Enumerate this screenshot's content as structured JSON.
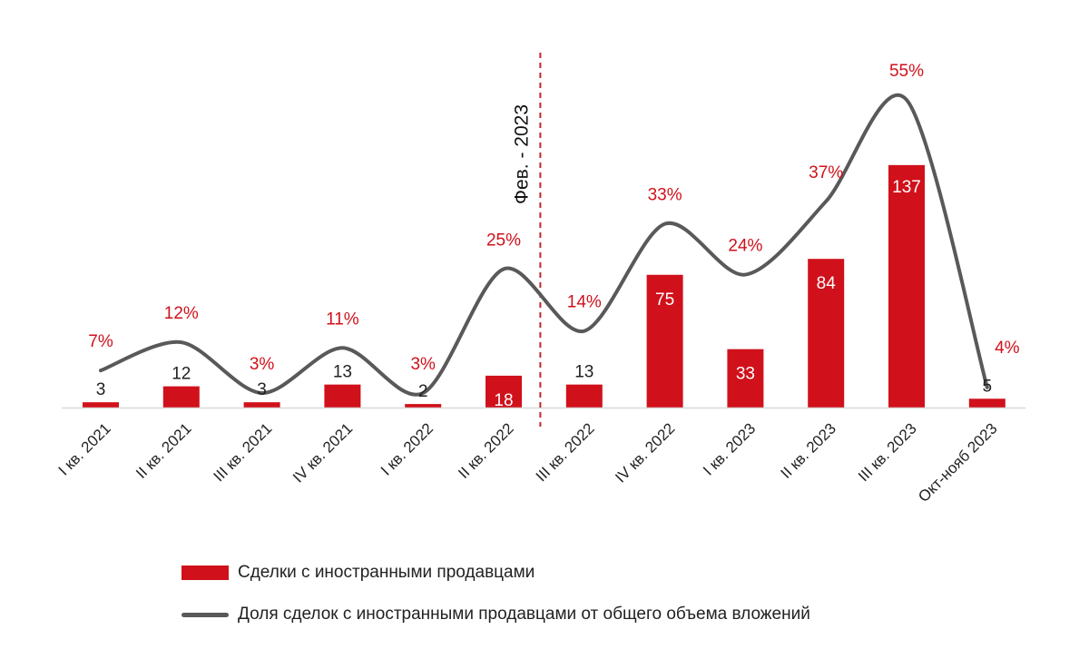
{
  "chart_data": {
    "type": "bar",
    "categories": [
      "I кв. 2021",
      "II кв. 2021",
      "III кв. 2021",
      "IV кв. 2021",
      "I кв. 2022",
      "II кв. 2022",
      "III кв. 2022",
      "IV кв. 2022",
      "I кв. 2023",
      "II кв. 2023",
      "III кв. 2023",
      "Окт-нояб 2023"
    ],
    "series": [
      {
        "name": "Сделки с иностранными продавцами",
        "type": "bar",
        "values": [
          3,
          12,
          3,
          13,
          2,
          18,
          13,
          75,
          33,
          84,
          137,
          5
        ],
        "labels": [
          "3",
          "12",
          "3",
          "13",
          "2",
          "18",
          "13",
          "75",
          "33",
          "84",
          "137",
          "5"
        ],
        "color": "#d0111b"
      },
      {
        "name": "Доля сделок с иностранными продавцами от общего объема вложений",
        "type": "line",
        "values": [
          7,
          12,
          3,
          11,
          3,
          25,
          14,
          33,
          24,
          37,
          55,
          4
        ],
        "labels": [
          "7%",
          "12%",
          "3%",
          "11%",
          "3%",
          "25%",
          "14%",
          "33%",
          "24%",
          "37%",
          "55%",
          "4%"
        ],
        "color": "#595959",
        "label_color": "#d0111b"
      }
    ],
    "annotation": {
      "text": "Фев. - 2023",
      "between": [
        "II кв. 2022",
        "III кв. 2022"
      ],
      "color": "#c0262c"
    },
    "title": "",
    "xlabel": "",
    "ylabel": "",
    "ylim": [
      0,
      160
    ],
    "ylim_share": [
      0,
      60
    ],
    "grid": false,
    "legend": "bottom"
  }
}
